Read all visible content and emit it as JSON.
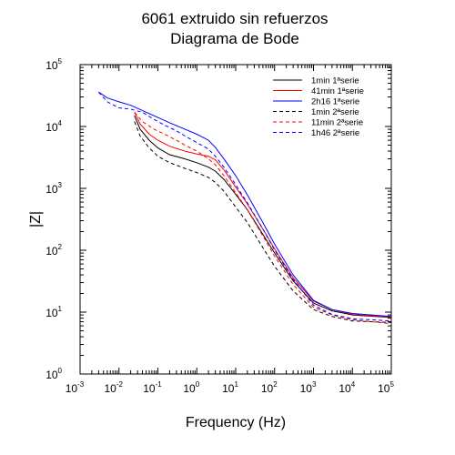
{
  "chart_data": {
    "type": "line",
    "title": "6061 extruido sin refuerzos",
    "subtitle": "Diagrama de Bode",
    "xlabel": "Frequency (Hz)",
    "ylabel": "|Z|",
    "xscale": "log",
    "yscale": "log",
    "xlim": [
      0.001,
      100000
    ],
    "ylim": [
      1,
      100000
    ],
    "x_tick_exponents": [
      -3,
      -2,
      -1,
      0,
      1,
      2,
      3,
      4,
      5
    ],
    "y_tick_exponents": [
      0,
      1,
      2,
      3,
      4,
      5
    ],
    "legend_position": "top-right",
    "grid": false,
    "series": [
      {
        "name": "1min 1ªserie",
        "color": "#000000",
        "dash": "solid",
        "x": [
          0.025,
          0.035,
          0.06,
          0.1,
          0.2,
          0.5,
          1,
          2,
          3,
          5,
          10,
          20,
          50,
          100,
          300,
          1000,
          3000,
          10000,
          100000
        ],
        "y": [
          15000,
          9000,
          6000,
          4500,
          3500,
          3000,
          2600,
          2200,
          1900,
          1400,
          800,
          450,
          180,
          90,
          32,
          14,
          10.5,
          9,
          8.2
        ]
      },
      {
        "name": "41min 1ªserie",
        "color": "#ff0000",
        "dash": "solid",
        "x": [
          0.025,
          0.035,
          0.06,
          0.1,
          0.2,
          0.5,
          1,
          2,
          3,
          5,
          10,
          20,
          50,
          100,
          300,
          1000,
          3000,
          10000,
          100000
        ],
        "y": [
          17000,
          11000,
          7500,
          6000,
          4800,
          4000,
          3600,
          3300,
          2900,
          2000,
          1050,
          560,
          220,
          105,
          36,
          15,
          11,
          9.2,
          8.3
        ]
      },
      {
        "name": "2h16 1ªserie",
        "color": "#0000ff",
        "dash": "solid",
        "x": [
          0.003,
          0.005,
          0.01,
          0.02,
          0.05,
          0.1,
          0.2,
          0.5,
          1,
          2,
          3,
          5,
          10,
          20,
          50,
          100,
          300,
          1000,
          3000,
          10000,
          100000
        ],
        "y": [
          36000,
          29000,
          25000,
          22000,
          17000,
          14000,
          11500,
          9000,
          7500,
          6000,
          4600,
          3000,
          1600,
          780,
          280,
          125,
          40,
          15.5,
          11,
          9.5,
          8.5
        ]
      },
      {
        "name": "1min 2ªserie",
        "color": "#000000",
        "dash": "dashed",
        "x": [
          0.025,
          0.035,
          0.06,
          0.1,
          0.2,
          0.5,
          1,
          2,
          3,
          5,
          10,
          20,
          50,
          100,
          300,
          1000,
          3000,
          10000,
          100000
        ],
        "y": [
          12000,
          7000,
          4500,
          3300,
          2600,
          2100,
          1800,
          1500,
          1250,
          900,
          500,
          280,
          110,
          55,
          22,
          11,
          8.5,
          7.2,
          6.8
        ]
      },
      {
        "name": "11min 2ªserie",
        "color": "#ff0000",
        "dash": "dashed",
        "x": [
          0.025,
          0.04,
          0.08,
          0.15,
          0.3,
          0.5,
          1,
          2,
          3,
          5,
          10,
          20,
          50,
          100,
          300,
          1000,
          3000,
          10000,
          100000
        ],
        "y": [
          17000,
          12000,
          9000,
          7500,
          6000,
          5000,
          4000,
          3000,
          2400,
          1600,
          850,
          450,
          170,
          80,
          28,
          12,
          9,
          7.5,
          6.5
        ]
      },
      {
        "name": "1h46 2ªserie",
        "color": "#0000ff",
        "dash": "dashed",
        "x": [
          0.003,
          0.005,
          0.01,
          0.02,
          0.04,
          0.08,
          0.15,
          0.3,
          0.5,
          1,
          2,
          3,
          5,
          10,
          20,
          50,
          100,
          300,
          1000,
          3000,
          10000,
          100000
        ],
        "y": [
          36000,
          25000,
          20000,
          19000,
          17000,
          13000,
          10500,
          8500,
          7000,
          5500,
          4300,
          3300,
          2200,
          1150,
          580,
          220,
          100,
          34,
          13,
          9.2,
          7.8,
          7.2
        ]
      }
    ]
  }
}
